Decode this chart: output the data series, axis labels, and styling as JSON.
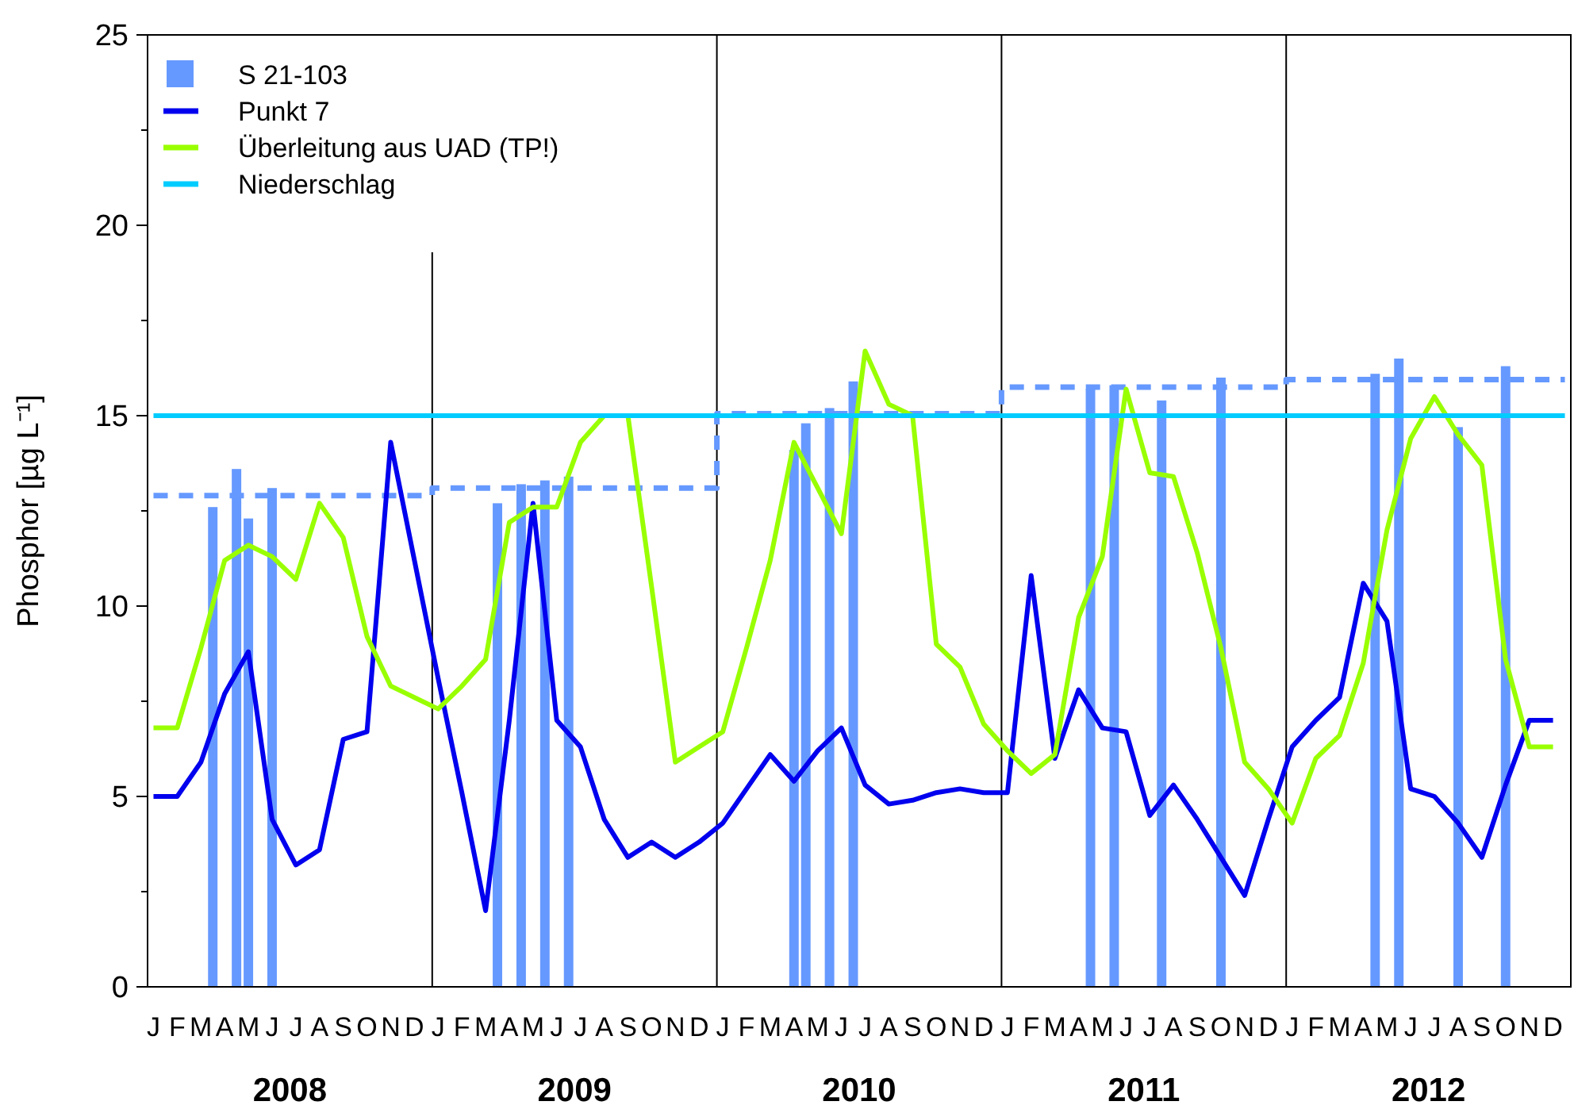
{
  "chart_data": {
    "type": "line",
    "ylabel": "Phosphor [µg L⁻¹]",
    "legend": "top left",
    "categories": [
      "J",
      null,
      "F",
      null,
      "M",
      null,
      "A",
      null,
      "M",
      null,
      "J",
      null,
      "J",
      null,
      "A",
      null,
      "S",
      null,
      "O",
      null,
      "N",
      null,
      "D",
      null,
      "J",
      null,
      "F",
      null,
      "M",
      null,
      "A",
      null,
      "M",
      null,
      "J",
      null,
      "J",
      null,
      "A",
      null,
      "S",
      null,
      "O",
      null,
      "N",
      null,
      "D",
      null,
      "J",
      null,
      "F",
      null,
      "M",
      null,
      "A",
      null,
      "M",
      null,
      "J",
      null,
      "J",
      null,
      "A",
      null,
      "S",
      null,
      "O",
      null,
      "N",
      null,
      "D",
      null,
      "J",
      null,
      "F",
      null,
      "M",
      null,
      "A",
      null,
      "M",
      null,
      "J",
      null,
      "J",
      null,
      "A",
      null,
      "S",
      null,
      "O",
      null,
      "N",
      null,
      "D",
      null,
      "J",
      null,
      "F",
      null,
      "M",
      null,
      "A",
      null,
      "M",
      null,
      "J",
      null,
      "J",
      null,
      "A",
      null,
      "S",
      null,
      "O",
      null,
      "N",
      null,
      "D",
      null
    ],
    "ylim": [
      0,
      25
    ],
    "yticks": [
      0,
      {
        "value": 2.5,
        "label": null
      },
      5,
      {
        "value": 7.5,
        "label": null
      },
      10,
      {
        "value": 12.5,
        "label": null
      },
      15,
      {
        "value": 17.5,
        "label": null
      },
      20,
      {
        "value": 22.5,
        "label": null
      },
      25
    ],
    "annotations": [
      "2008",
      "2009",
      "2010",
      "2011",
      "2012"
    ],
    "series": [
      {
        "type": "bar",
        "name": "S 21-103",
        "color": "#6699ff",
        "values": [
          null,
          null,
          null,
          null,
          null,
          12.6,
          null,
          13.6,
          12.3,
          null,
          13.1,
          null,
          null,
          null,
          null,
          null,
          null,
          null,
          null,
          null,
          null,
          null,
          null,
          null,
          null,
          null,
          null,
          null,
          null,
          12.7,
          null,
          13.2,
          null,
          13.3,
          null,
          13.4,
          null,
          null,
          null,
          null,
          null,
          null,
          null,
          null,
          null,
          null,
          null,
          null,
          null,
          null,
          null,
          null,
          null,
          null,
          14.1,
          14.8,
          null,
          15.2,
          null,
          15.9,
          null,
          null,
          null,
          null,
          null,
          null,
          null,
          null,
          null,
          null,
          null,
          null,
          null,
          null,
          null,
          null,
          null,
          null,
          null,
          15.7,
          null,
          15.8,
          null,
          null,
          null,
          15.4,
          null,
          null,
          null,
          null,
          16.0,
          null,
          null,
          null,
          null,
          null,
          null,
          null,
          null,
          null,
          null,
          null,
          null,
          16.1,
          null,
          16.5,
          null,
          null,
          null,
          null,
          14.7,
          null,
          null,
          null,
          16.3,
          null,
          null,
          null,
          null,
          null
        ]
      },
      {
        "name": "Punkt 7",
        "color": "#0000ee",
        "values": [
          5.0,
          null,
          5.0,
          null,
          5.9,
          null,
          7.7,
          null,
          8.8,
          null,
          4.4,
          null,
          3.2,
          null,
          3.6,
          null,
          6.5,
          null,
          6.7,
          null,
          14.3,
          null,
          11.2,
          null,
          8.1,
          null,
          5.1,
          null,
          2.0,
          null,
          7.0,
          null,
          12.7,
          null,
          7.0,
          null,
          6.3,
          null,
          4.4,
          null,
          3.4,
          null,
          3.8,
          null,
          3.4,
          null,
          3.8,
          null,
          4.3,
          null,
          5.2,
          null,
          6.1,
          null,
          5.4,
          null,
          6.2,
          null,
          6.8,
          null,
          5.3,
          null,
          4.8,
          null,
          4.9,
          null,
          5.1,
          null,
          5.2,
          null,
          5.1,
          null,
          5.1,
          null,
          10.8,
          null,
          6.0,
          null,
          7.8,
          null,
          6.8,
          null,
          6.7,
          null,
          4.5,
          null,
          5.3,
          null,
          4.4,
          null,
          3.4,
          null,
          2.4,
          null,
          4.4,
          null,
          6.3,
          null,
          7.0,
          null,
          7.6,
          null,
          10.6,
          null,
          9.6,
          null,
          5.2,
          null,
          5.0,
          null,
          4.3,
          null,
          3.4,
          null,
          5.3,
          null,
          7.0,
          null,
          7.0,
          null
        ]
      },
      {
        "name": "Überleitung aus UAD (TP!)",
        "color": "#99ff00",
        "values": [
          6.8,
          null,
          6.8,
          null,
          8.9,
          null,
          11.2,
          null,
          11.6,
          null,
          11.3,
          null,
          10.7,
          null,
          12.7,
          null,
          11.8,
          null,
          9.2,
          null,
          7.9,
          null,
          7.6,
          null,
          7.3,
          null,
          7.9,
          null,
          8.6,
          null,
          12.2,
          null,
          12.6,
          null,
          12.6,
          null,
          14.3,
          null,
          15.0,
          null,
          15.0,
          null,
          10.5,
          null,
          5.9,
          null,
          6.3,
          null,
          6.7,
          null,
          8.9,
          null,
          11.2,
          null,
          14.3,
          null,
          13.1,
          null,
          11.9,
          null,
          16.7,
          null,
          15.3,
          null,
          15.0,
          null,
          9.0,
          null,
          8.4,
          null,
          6.9,
          null,
          6.2,
          null,
          5.6,
          null,
          6.1,
          null,
          9.7,
          null,
          11.3,
          null,
          15.7,
          null,
          13.5,
          null,
          13.4,
          null,
          11.4,
          null,
          8.9,
          null,
          5.9,
          null,
          5.2,
          null,
          4.3,
          null,
          6.0,
          null,
          6.6,
          null,
          8.5,
          null,
          12.0,
          null,
          14.4,
          null,
          15.5,
          null,
          14.5,
          null,
          13.7,
          null,
          8.6,
          null,
          6.3,
          null,
          6.3,
          null
        ]
      },
      {
        "name": "Niederschlag",
        "color": "#00ccff",
        "values": [
          15,
          15,
          15,
          15,
          15,
          15,
          15,
          15,
          15,
          15,
          15,
          15,
          15,
          15,
          15,
          15,
          15,
          15,
          15,
          15,
          15,
          15,
          15,
          15,
          15,
          15,
          15,
          15,
          15,
          15,
          15,
          15,
          15,
          15,
          15,
          15,
          15,
          15,
          15,
          15,
          15,
          15,
          15,
          15,
          15,
          15,
          15,
          15,
          15,
          15,
          15,
          15,
          15,
          15,
          15,
          15,
          15,
          15,
          15,
          15,
          15,
          15,
          15,
          15,
          15,
          15,
          15,
          15,
          15,
          15,
          15,
          15,
          15,
          15,
          15,
          15,
          15,
          15,
          15,
          15,
          15,
          15,
          15,
          15,
          15,
          15,
          15,
          15,
          15,
          15,
          15,
          15,
          15,
          15,
          15,
          15,
          15,
          15,
          15,
          15,
          15,
          15,
          15,
          15,
          15,
          15,
          15,
          15,
          15,
          15,
          15,
          15,
          15,
          15,
          15,
          15,
          15,
          15,
          15,
          15
        ]
      },
      {
        "type": "step",
        "color": "#6699ff",
        "line_style": "dashed",
        "values": [
          12.9,
          12.9,
          12.9,
          12.9,
          12.9,
          12.9,
          12.9,
          12.9,
          12.9,
          12.9,
          12.9,
          12.9,
          12.9,
          12.9,
          12.9,
          12.9,
          12.9,
          12.9,
          12.9,
          12.9,
          12.9,
          12.9,
          12.9,
          12.9,
          13.1,
          13.1,
          13.1,
          13.1,
          13.1,
          13.1,
          13.1,
          13.1,
          13.1,
          13.1,
          13.1,
          13.1,
          13.1,
          13.1,
          13.1,
          13.1,
          13.1,
          13.1,
          13.1,
          13.1,
          13.1,
          13.1,
          13.1,
          13.1,
          15.05,
          15.05,
          15.05,
          15.05,
          15.05,
          15.05,
          15.05,
          15.05,
          15.05,
          15.05,
          15.05,
          15.05,
          15.05,
          15.05,
          15.05,
          15.05,
          15.05,
          15.05,
          15.05,
          15.05,
          15.05,
          15.05,
          15.05,
          15.05,
          15.75,
          15.75,
          15.75,
          15.75,
          15.75,
          15.75,
          15.75,
          15.75,
          15.75,
          15.75,
          15.75,
          15.75,
          15.75,
          15.75,
          15.75,
          15.75,
          15.75,
          15.75,
          15.75,
          15.75,
          15.75,
          15.75,
          15.75,
          15.75,
          15.95,
          15.95,
          15.95,
          15.95,
          15.95,
          15.95,
          15.95,
          15.95,
          15.95,
          15.95,
          15.95,
          15.95,
          15.95,
          15.95,
          15.95,
          15.95,
          15.95,
          15.95,
          15.95,
          15.95,
          15.95,
          15.95,
          15.95,
          15.95
        ]
      }
    ]
  }
}
